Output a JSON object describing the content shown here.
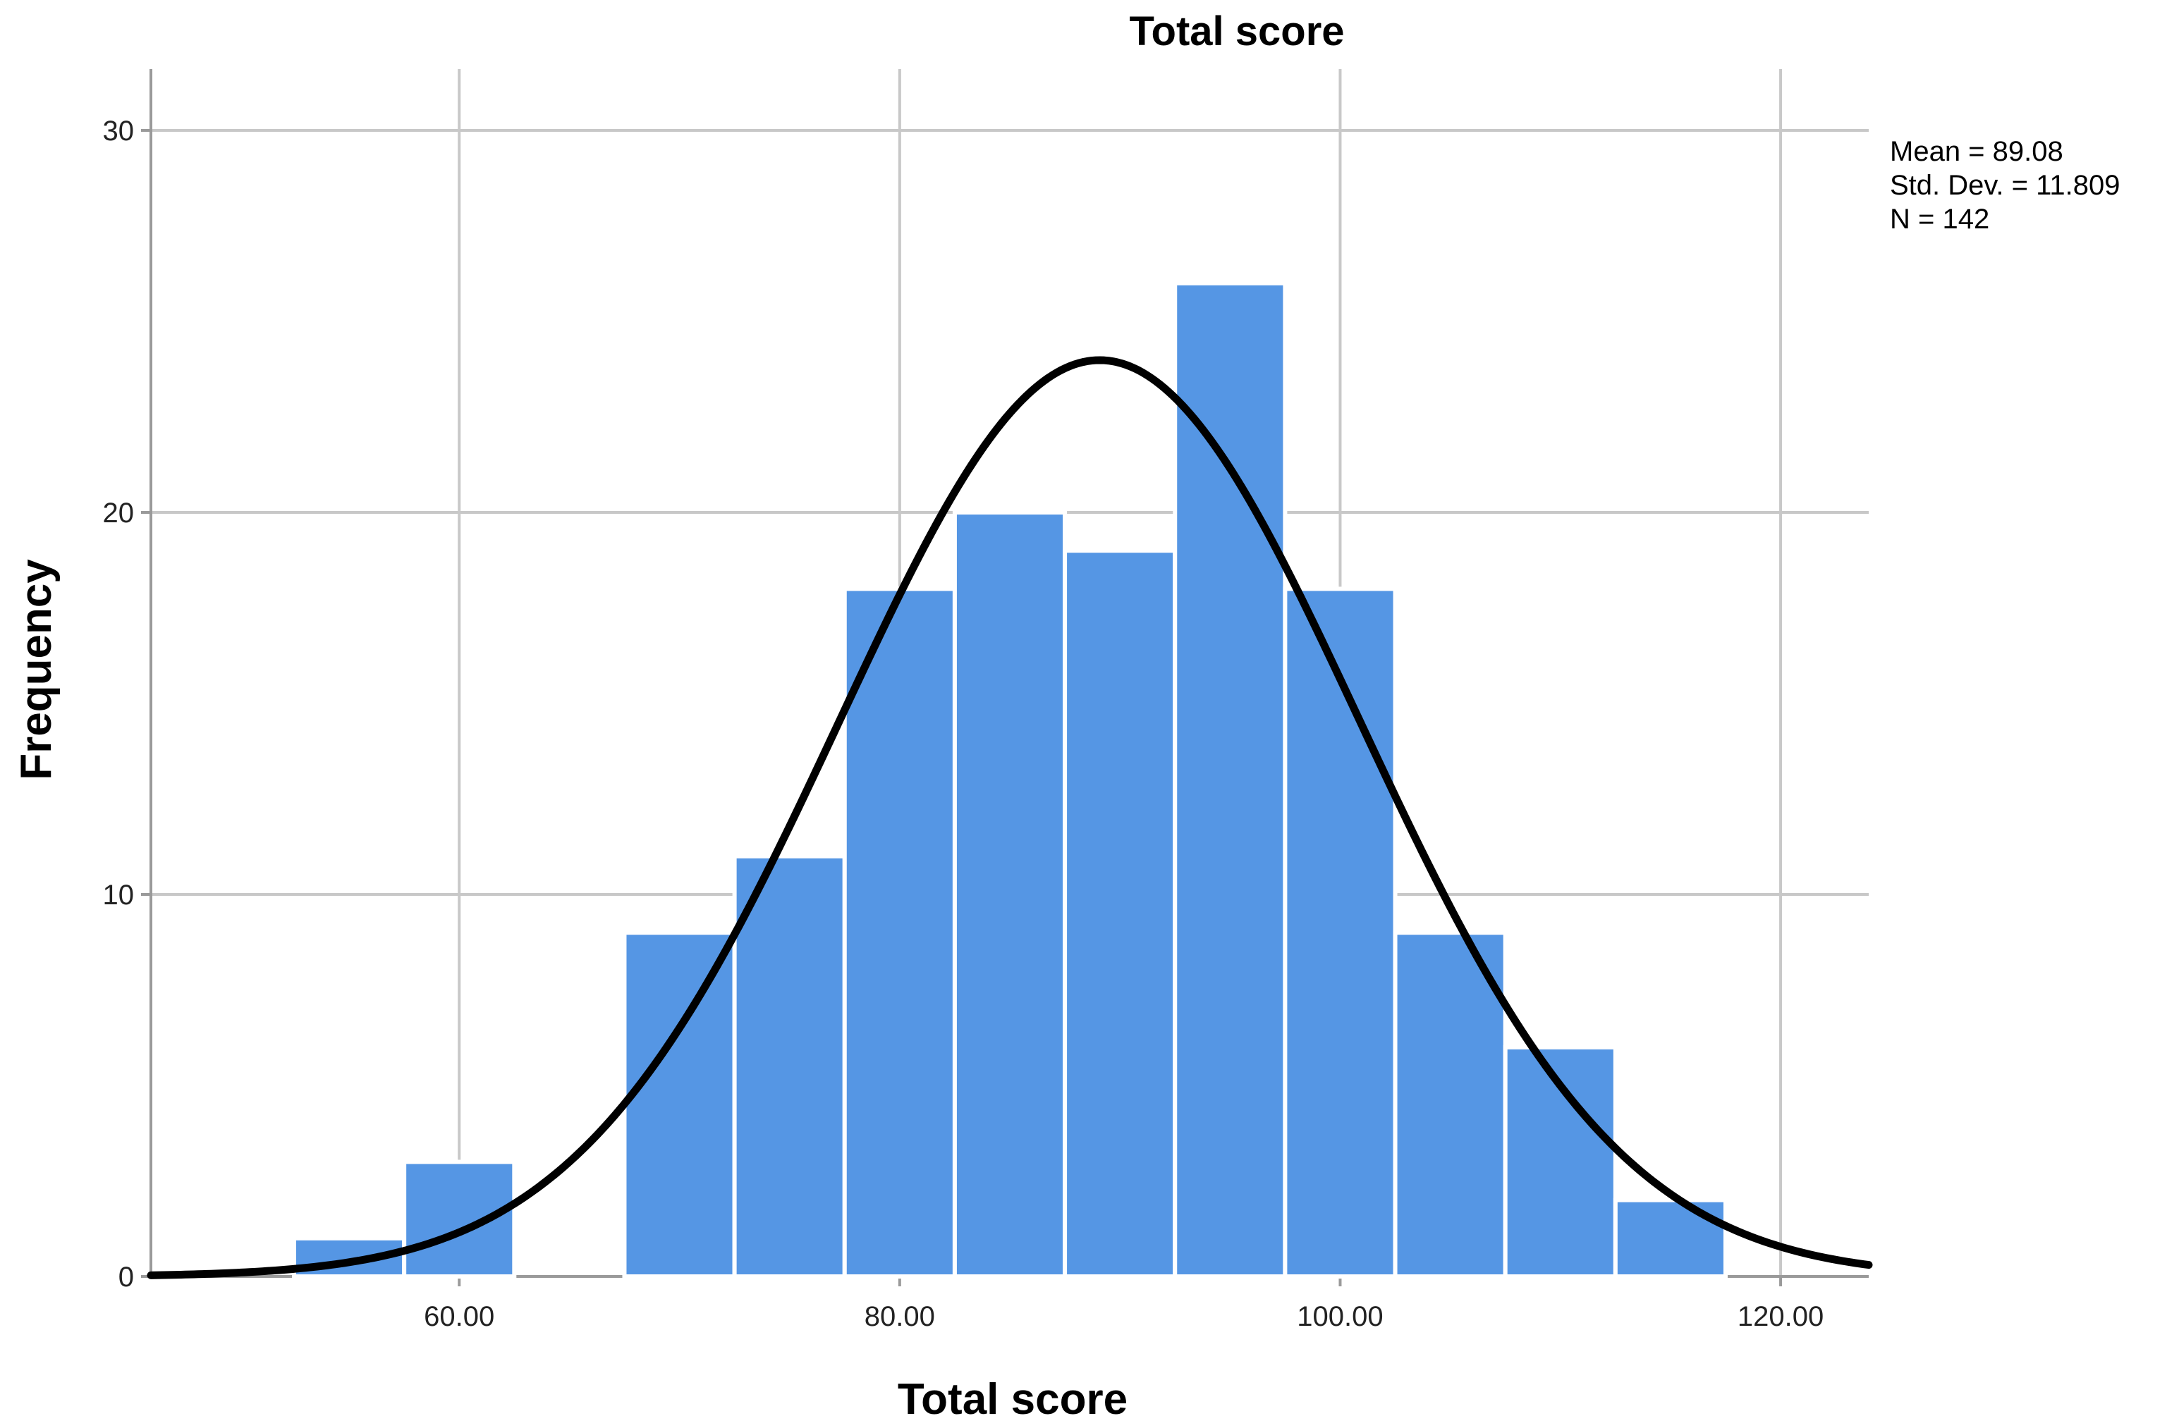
{
  "chart_data": {
    "type": "bar",
    "title": "Total score",
    "xlabel": "Total score",
    "ylabel": "Frequency",
    "bins": [
      {
        "start": 52.5,
        "end": 57.5,
        "count": 1
      },
      {
        "start": 57.5,
        "end": 62.5,
        "count": 3
      },
      {
        "start": 62.5,
        "end": 67.5,
        "count": 0
      },
      {
        "start": 67.5,
        "end": 72.5,
        "count": 9
      },
      {
        "start": 72.5,
        "end": 77.5,
        "count": 11
      },
      {
        "start": 77.5,
        "end": 82.5,
        "count": 18
      },
      {
        "start": 82.5,
        "end": 87.5,
        "count": 20
      },
      {
        "start": 87.5,
        "end": 92.5,
        "count": 19
      },
      {
        "start": 92.5,
        "end": 97.5,
        "count": 26
      },
      {
        "start": 97.5,
        "end": 102.5,
        "count": 18
      },
      {
        "start": 102.5,
        "end": 107.5,
        "count": 9
      },
      {
        "start": 107.5,
        "end": 112.5,
        "count": 6
      },
      {
        "start": 112.5,
        "end": 117.5,
        "count": 2
      }
    ],
    "x_ticks": [
      60,
      80,
      100,
      120
    ],
    "x_tick_labels": [
      "60.00",
      "80.00",
      "100.00",
      "120.00"
    ],
    "y_ticks": [
      0,
      10,
      20,
      30
    ],
    "y_tick_labels": [
      "0",
      "10",
      "20",
      "30"
    ],
    "xlim": [
      46,
      124
    ],
    "ylim": [
      0,
      30
    ],
    "grid": true,
    "normal_curve": {
      "mean": 89.08,
      "std_dev": 11.809,
      "n": 142,
      "bin_width": 5
    },
    "stats": {
      "mean_label": "Mean = 89.08",
      "std_label": "Std. Dev. = 11.809",
      "n_label": "N = 142"
    },
    "legend_position": "top-right",
    "colors": {
      "bar_fill": "#5596e4",
      "bar_edge": "#ffffff",
      "curve": "#000000",
      "grid": "#c8c8c8"
    }
  }
}
